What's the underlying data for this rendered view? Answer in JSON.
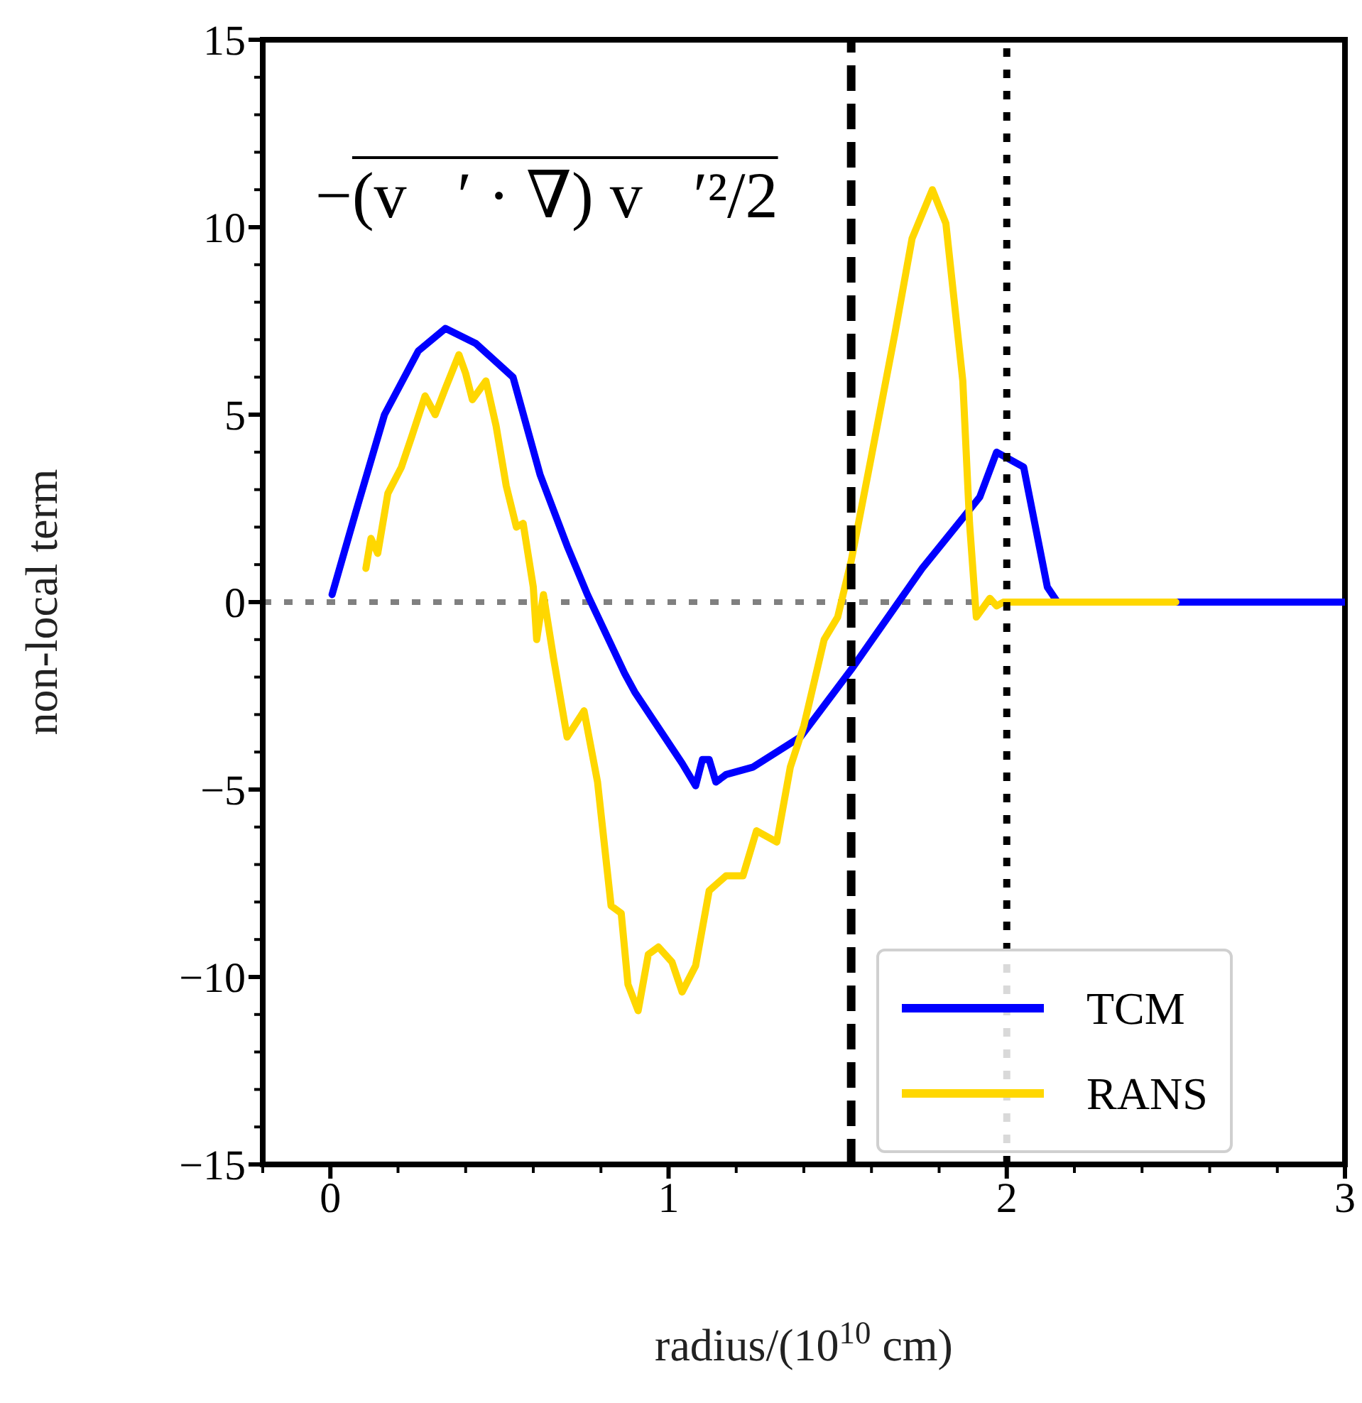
{
  "chart_data": {
    "type": "line",
    "xlabel": "radius/(10$^{10}$ cm)",
    "ylabel": "non-local term",
    "annotations": [
      "−(v⃗′ · ∇) v⃗′²/2"
    ],
    "xlim": [
      -0.2,
      3
    ],
    "xticks": [
      0,
      1,
      2,
      3,
      {
        "value": 0.2,
        "label": null
      },
      {
        "value": 0.4,
        "label": null
      },
      {
        "value": 0.6,
        "label": null
      },
      {
        "value": 0.8,
        "label": null
      },
      {
        "value": 1.2,
        "label": null
      },
      {
        "value": 1.4,
        "label": null
      },
      {
        "value": 1.6,
        "label": null
      },
      {
        "value": 1.8,
        "label": null
      },
      {
        "value": 2.2,
        "label": null
      },
      {
        "value": 2.4,
        "label": null
      },
      {
        "value": 2.6,
        "label": null
      },
      {
        "value": 2.8,
        "label": null
      },
      {
        "value": -0.2,
        "label": null
      }
    ],
    "ylim": [
      -15,
      15
    ],
    "yticks": [
      -15,
      -10,
      -5,
      0,
      5,
      10,
      15,
      {
        "value": -14,
        "label": null
      },
      {
        "value": -13,
        "label": null
      },
      {
        "value": -12,
        "label": null
      },
      {
        "value": -11,
        "label": null
      },
      {
        "value": -9,
        "label": null
      },
      {
        "value": -8,
        "label": null
      },
      {
        "value": -7,
        "label": null
      },
      {
        "value": -6,
        "label": null
      },
      {
        "value": -4,
        "label": null
      },
      {
        "value": -3,
        "label": null
      },
      {
        "value": -2,
        "label": null
      },
      {
        "value": -1,
        "label": null
      },
      {
        "value": 1,
        "label": null
      },
      {
        "value": 2,
        "label": null
      },
      {
        "value": 3,
        "label": null
      },
      {
        "value": 4,
        "label": null
      },
      {
        "value": 6,
        "label": null
      },
      {
        "value": 7,
        "label": null
      },
      {
        "value": 8,
        "label": null
      },
      {
        "value": 9,
        "label": null
      },
      {
        "value": 11,
        "label": null
      },
      {
        "value": 12,
        "label": null
      },
      {
        "value": 13,
        "label": null
      },
      {
        "value": 14,
        "label": null
      }
    ],
    "legend": "bottom right",
    "line_style": "solid",
    "marker": "none",
    "ref_lines": [
      {
        "axis": "y",
        "value": 0,
        "color": "#808080",
        "line_style": "dotted"
      },
      {
        "axis": "x",
        "value": 1.54,
        "color": "#000000",
        "line_style": "dashed"
      },
      {
        "axis": "x",
        "value": 2,
        "color": "#000000",
        "line_style": "dotted"
      }
    ],
    "series": [
      {
        "name": "TCM",
        "color": "#0000ff",
        "x": [
          0.005,
          0.075,
          0.16,
          0.26,
          0.34,
          0.43,
          0.54,
          0.62,
          0.7,
          0.76,
          0.87,
          0.9,
          1.04,
          1.08,
          1.1,
          1.12,
          1.14,
          1.17,
          1.25,
          1.39,
          1.54,
          1.75,
          1.92,
          1.97,
          2.05,
          2.12,
          2.15,
          3
        ],
        "values": [
          0.2,
          2.4,
          5.0,
          6.7,
          7.3,
          6.9,
          6.0,
          3.4,
          1.5,
          0.2,
          -1.9,
          -2.4,
          -4.3,
          -4.9,
          -4.2,
          -4.2,
          -4.8,
          -4.6,
          -4.4,
          -3.6,
          -1.8,
          0.9,
          2.8,
          4.0,
          3.6,
          0.4,
          0,
          0
        ]
      },
      {
        "name": "RANS",
        "color": "#ffd700",
        "x": [
          0.105,
          0.12,
          0.14,
          0.17,
          0.21,
          0.24,
          0.28,
          0.31,
          0.34,
          0.38,
          0.4,
          0.42,
          0.46,
          0.49,
          0.52,
          0.55,
          0.57,
          0.6,
          0.61,
          0.63,
          0.66,
          0.7,
          0.75,
          0.79,
          0.83,
          0.86,
          0.88,
          0.91,
          0.94,
          0.97,
          1.01,
          1.04,
          1.08,
          1.12,
          1.17,
          1.22,
          1.26,
          1.32,
          1.36,
          1.4,
          1.46,
          1.5,
          1.54,
          1.6,
          1.67,
          1.72,
          1.78,
          1.82,
          1.87,
          1.89,
          1.91,
          1.95,
          1.97,
          1.99,
          2.5
        ],
        "values": [
          0.9,
          1.7,
          1.3,
          2.9,
          3.6,
          4.4,
          5.5,
          5.0,
          5.7,
          6.6,
          6.1,
          5.4,
          5.9,
          4.7,
          3.1,
          2.0,
          2.1,
          0.4,
          -1.0,
          0.2,
          -1.5,
          -3.6,
          -2.9,
          -4.8,
          -8.1,
          -8.3,
          -10.2,
          -10.9,
          -9.4,
          -9.2,
          -9.6,
          -10.4,
          -9.7,
          -7.7,
          -7.3,
          -7.3,
          -6.1,
          -6.4,
          -4.4,
          -3.3,
          -1.0,
          -0.4,
          1.1,
          3.9,
          7.2,
          9.7,
          11.0,
          10.1,
          5.9,
          2.1,
          -0.4,
          0.1,
          -0.1,
          0,
          0
        ]
      }
    ]
  }
}
